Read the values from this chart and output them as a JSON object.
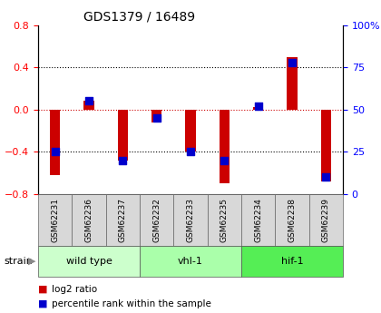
{
  "title": "GDS1379 / 16489",
  "samples": [
    "GSM62231",
    "GSM62236",
    "GSM62237",
    "GSM62232",
    "GSM62233",
    "GSM62235",
    "GSM62234",
    "GSM62238",
    "GSM62239"
  ],
  "log2_ratio": [
    -0.62,
    0.08,
    -0.48,
    -0.12,
    -0.4,
    -0.7,
    0.02,
    0.5,
    -0.68
  ],
  "percentile_rank": [
    25,
    55,
    20,
    45,
    25,
    20,
    52,
    78,
    10
  ],
  "groups": [
    {
      "label": "wild type",
      "start": 0,
      "end": 3,
      "color": "#ccffcc"
    },
    {
      "label": "vhl-1",
      "start": 3,
      "end": 6,
      "color": "#aaffaa"
    },
    {
      "label": "hif-1",
      "start": 6,
      "end": 9,
      "color": "#55ee55"
    }
  ],
  "ylim": [
    -0.8,
    0.8
  ],
  "yticks": [
    -0.8,
    -0.4,
    0.0,
    0.4,
    0.8
  ],
  "y2ticks": [
    0,
    25,
    50,
    75,
    100
  ],
  "y2tick_labels": [
    "0",
    "25",
    "50",
    "75",
    "100%"
  ],
  "bar_color": "#cc0000",
  "dot_color": "#0000cc",
  "zero_line_color": "#cc0000",
  "legend_red": "log2 ratio",
  "legend_blue": "percentile rank within the sample",
  "strain_label": "strain",
  "sample_bg_color": "#d8d8d8"
}
